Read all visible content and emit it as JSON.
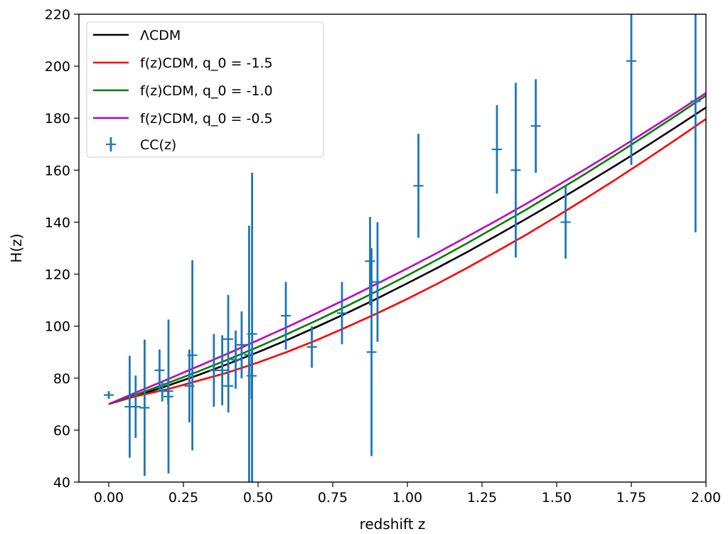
{
  "chart_data": {
    "type": "line",
    "xlabel": "redshift z",
    "ylabel": "H(z)",
    "xlim": [
      -0.1,
      2.0
    ],
    "ylim": [
      40,
      220
    ],
    "xticks": [
      0.0,
      0.25,
      0.5,
      0.75,
      1.0,
      1.25,
      1.5,
      1.75,
      2.0
    ],
    "xtick_labels": [
      "0.00",
      "0.25",
      "0.50",
      "0.75",
      "1.00",
      "1.25",
      "1.50",
      "1.75",
      "2.00"
    ],
    "yticks": [
      40,
      60,
      80,
      100,
      120,
      140,
      160,
      180,
      200,
      220
    ],
    "ytick_labels": [
      "40",
      "60",
      "80",
      "100",
      "120",
      "140",
      "160",
      "180",
      "200",
      "220"
    ],
    "grid": false,
    "legend_position": "top-left",
    "series": [
      {
        "name": "ΛCDM",
        "color": "#000000",
        "x": [
          0.0,
          0.1,
          0.2,
          0.3,
          0.4,
          0.5,
          0.6,
          0.7,
          0.8,
          0.9,
          1.0,
          1.1,
          1.2,
          1.3,
          1.4,
          1.5,
          1.6,
          1.7,
          1.8,
          1.9,
          2.0
        ],
        "y": [
          70.0,
          73.4,
          77.2,
          81.2,
          85.5,
          90.0,
          94.8,
          99.9,
          105.2,
          110.7,
          116.5,
          122.4,
          128.5,
          134.9,
          141.4,
          148.1,
          155.0,
          162.0,
          169.2,
          176.6,
          184.1
        ]
      },
      {
        "name": "f(z)CDM, q_0 = -1.5",
        "color": "#ff0000",
        "x": [
          0.0,
          0.05,
          0.1,
          0.2,
          0.3,
          0.4,
          0.5,
          0.6,
          0.7,
          0.8,
          0.9,
          1.0,
          1.1,
          1.2,
          1.3,
          1.4,
          1.5,
          1.6,
          1.7,
          1.8,
          1.9,
          2.0
        ],
        "y": [
          70.0,
          71.8,
          73.3,
          75.8,
          79.0,
          82.2,
          86.0,
          90.2,
          94.8,
          99.8,
          105.0,
          110.5,
          116.3,
          122.4,
          128.8,
          135.3,
          142.2,
          149.3,
          156.6,
          164.1,
          171.8,
          179.7
        ]
      },
      {
        "name": "f(z)CDM, q_0 = -1.0",
        "color": "#008000",
        "x": [
          0.0,
          0.1,
          0.2,
          0.3,
          0.4,
          0.5,
          0.6,
          0.7,
          0.8,
          0.9,
          1.0,
          1.1,
          1.2,
          1.3,
          1.4,
          1.5,
          1.6,
          1.7,
          1.8,
          1.9,
          2.0
        ],
        "y": [
          70.0,
          74.0,
          78.2,
          82.6,
          87.2,
          92.0,
          97.1,
          102.4,
          107.9,
          113.6,
          119.5,
          125.6,
          131.9,
          138.4,
          145.0,
          151.9,
          158.9,
          166.1,
          173.5,
          181.0,
          188.7
        ]
      },
      {
        "name": "f(z)CDM, q_0 = -0.5",
        "color": "#bf00bf",
        "x": [
          0.0,
          0.1,
          0.2,
          0.3,
          0.4,
          0.5,
          0.6,
          0.7,
          0.8,
          0.9,
          1.0,
          1.1,
          1.2,
          1.3,
          1.4,
          1.5,
          1.6,
          1.7,
          1.8,
          1.9,
          2.0
        ],
        "y": [
          70.0,
          74.9,
          79.7,
          84.6,
          89.5,
          94.6,
          99.8,
          105.2,
          110.7,
          116.4,
          122.2,
          128.2,
          134.4,
          140.7,
          147.2,
          153.9,
          160.7,
          167.7,
          174.9,
          182.2,
          189.7
        ]
      }
    ],
    "errorbar_series": {
      "name": "CC(z)",
      "color": "#1f77b4",
      "points": [
        {
          "x": 0.0,
          "y": 73.5,
          "err": 1.5
        },
        {
          "x": 0.07,
          "y": 69.0,
          "err": 19.6
        },
        {
          "x": 0.09,
          "y": 69.0,
          "err": 12.0
        },
        {
          "x": 0.12,
          "y": 68.6,
          "err": 26.2
        },
        {
          "x": 0.17,
          "y": 83.0,
          "err": 8.0
        },
        {
          "x": 0.179,
          "y": 75.0,
          "err": 4.0
        },
        {
          "x": 0.199,
          "y": 75.0,
          "err": 5.0
        },
        {
          "x": 0.2,
          "y": 72.9,
          "err": 29.6
        },
        {
          "x": 0.27,
          "y": 77.0,
          "err": 14.0
        },
        {
          "x": 0.28,
          "y": 88.8,
          "err": 36.6
        },
        {
          "x": 0.352,
          "y": 83.0,
          "err": 14.0
        },
        {
          "x": 0.38,
          "y": 83.0,
          "err": 13.5
        },
        {
          "x": 0.4,
          "y": 95.0,
          "err": 17.0
        },
        {
          "x": 0.4004,
          "y": 77.0,
          "err": 10.2
        },
        {
          "x": 0.425,
          "y": 87.1,
          "err": 11.2
        },
        {
          "x": 0.445,
          "y": 92.8,
          "err": 12.9
        },
        {
          "x": 0.47,
          "y": 89.0,
          "err": 49.6
        },
        {
          "x": 0.4783,
          "y": 80.9,
          "err": 9.0
        },
        {
          "x": 0.48,
          "y": 97.0,
          "err": 62.0
        },
        {
          "x": 0.593,
          "y": 104.0,
          "err": 13.0
        },
        {
          "x": 0.68,
          "y": 92.0,
          "err": 8.0
        },
        {
          "x": 0.781,
          "y": 105.0,
          "err": 12.0
        },
        {
          "x": 0.875,
          "y": 125.0,
          "err": 17.0
        },
        {
          "x": 0.88,
          "y": 90.0,
          "err": 40.0
        },
        {
          "x": 0.9,
          "y": 117.0,
          "err": 23.0
        },
        {
          "x": 1.037,
          "y": 154.0,
          "err": 20.0
        },
        {
          "x": 1.3,
          "y": 168.0,
          "err": 17.0
        },
        {
          "x": 1.363,
          "y": 160.0,
          "err": 33.6
        },
        {
          "x": 1.43,
          "y": 177.0,
          "err": 18.0
        },
        {
          "x": 1.53,
          "y": 140.0,
          "err": 14.0
        },
        {
          "x": 1.75,
          "y": 202.0,
          "err": 40.0
        },
        {
          "x": 1.965,
          "y": 186.5,
          "err": 50.4
        }
      ]
    }
  }
}
